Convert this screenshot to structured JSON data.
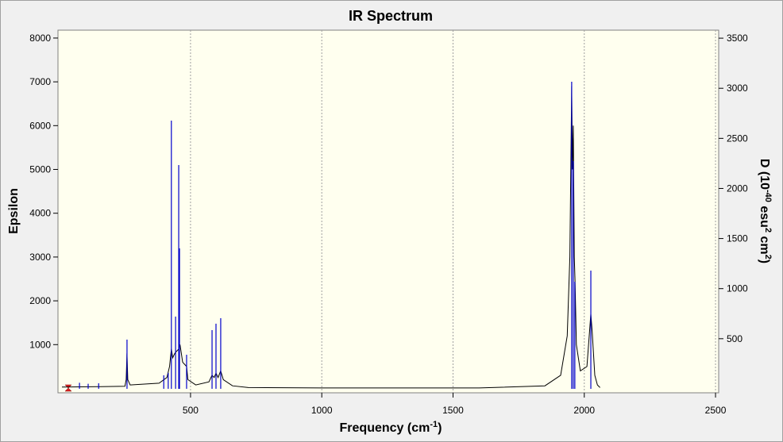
{
  "chart_data": {
    "type": "line",
    "title": "IR Spectrum",
    "x_label": [
      "Frequency (cm",
      "-1",
      ")"
    ],
    "y_label": "Epsilon",
    "y2_label": [
      "D (10",
      "-40",
      " esu",
      "2",
      " cm",
      "2",
      ")"
    ],
    "xlim": [
      -5,
      2512
    ],
    "ylim": [
      -100,
      8180
    ],
    "y2lim": [
      -40,
      3580
    ],
    "xticks": [
      500,
      1000,
      1500,
      2000,
      2500
    ],
    "yticks": [
      1000,
      2000,
      3000,
      4000,
      5000,
      6000,
      7000,
      8000
    ],
    "y2ticks": [
      500,
      1000,
      1500,
      2000,
      2500,
      3000,
      3500
    ],
    "xgrid": true,
    "series": [
      {
        "type": "line",
        "color": "#000000",
        "x": [
          10,
          150,
          250,
          255,
          258,
          261,
          270,
          380,
          410,
          420,
          427,
          432,
          440,
          447,
          455,
          460,
          470,
          485,
          490,
          520,
          570,
          582,
          590,
          597,
          605,
          615,
          625,
          660,
          720,
          1000,
          1600,
          1850,
          1910,
          1935,
          1945,
          1952,
          1955,
          1958,
          1962,
          1965,
          1970,
          1985,
          2010,
          2020,
          2025,
          2030,
          2040,
          2050,
          2060
        ],
        "values": [
          30,
          40,
          50,
          200,
          800,
          200,
          80,
          120,
          250,
          500,
          900,
          700,
          800,
          850,
          900,
          1000,
          600,
          500,
          200,
          80,
          150,
          300,
          250,
          350,
          250,
          400,
          200,
          60,
          20,
          10,
          10,
          60,
          300,
          1200,
          3000,
          6900,
          5000,
          6000,
          3000,
          2400,
          1000,
          400,
          500,
          1300,
          1700,
          1300,
          300,
          80,
          20
        ]
      },
      {
        "type": "stem",
        "color": "#0000cc",
        "axis": "y2",
        "x": [
          77,
          110,
          150,
          258,
          398,
          415,
          427,
          443,
          455,
          458,
          485,
          582,
          597,
          615,
          1952,
          1958,
          1964,
          2025
        ],
        "values": [
          60,
          50,
          55,
          491,
          135,
          158,
          2677,
          721,
          2233,
          1402,
          340,
          586,
          650,
          705,
          3065,
          2273,
          1069,
          1180
        ]
      }
    ]
  }
}
